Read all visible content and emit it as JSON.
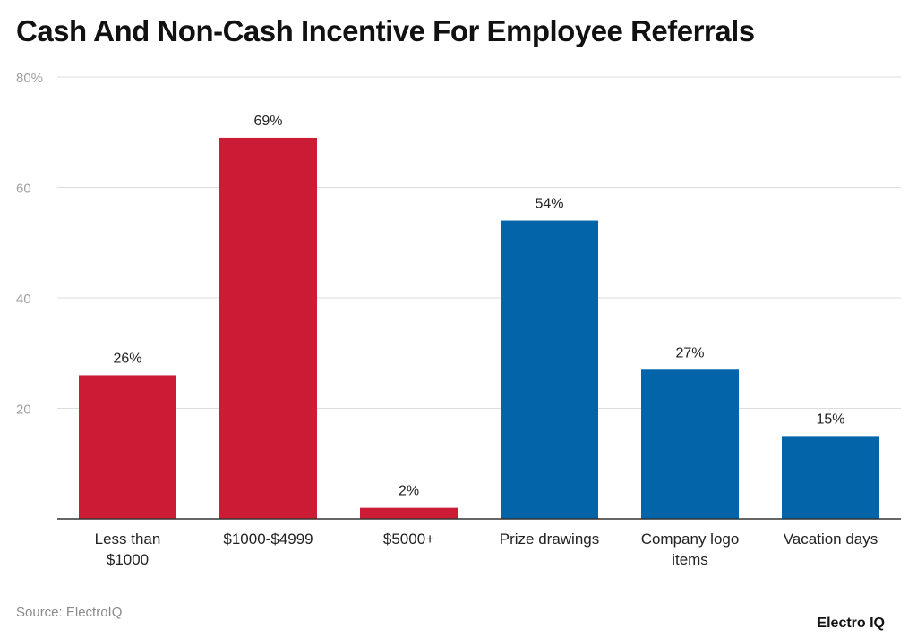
{
  "title": "Cash And Non-Cash Incentive For Employee Referrals",
  "source": "Source: ElectroIQ",
  "brand": "Electro IQ",
  "colors": {
    "cash": "#cc1c35",
    "non_cash": "#0364a9",
    "grid": "#dddddd",
    "axis": "#333333",
    "tick_label": "#a0a0a0",
    "label": "#222222"
  },
  "chart_data": {
    "type": "bar",
    "title": "Cash And Non-Cash Incentive For Employee Referrals",
    "xlabel": "",
    "ylabel": "",
    "ylim": [
      0,
      80
    ],
    "yticks": [
      20,
      40,
      60,
      80
    ],
    "ytick_labels": [
      "20",
      "40",
      "60",
      "80%"
    ],
    "grid": true,
    "categories": [
      [
        "Less than",
        "$1000"
      ],
      [
        "$1000-$4999"
      ],
      [
        "$5000+"
      ],
      [
        "Prize drawings"
      ],
      [
        "Company logo",
        "items"
      ],
      [
        "Vacation days"
      ]
    ],
    "values": [
      26,
      69,
      2,
      54,
      27,
      15
    ],
    "value_labels": [
      "26%",
      "69%",
      "2%",
      "54%",
      "27%",
      "15%"
    ],
    "bar_colors": [
      "#cc1c35",
      "#cc1c35",
      "#cc1c35",
      "#0364a9",
      "#0364a9",
      "#0364a9"
    ]
  }
}
